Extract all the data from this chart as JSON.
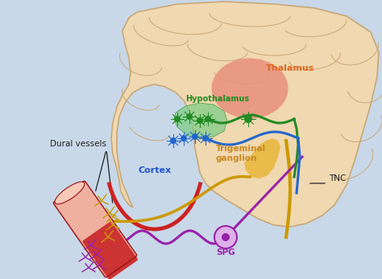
{
  "background_color": "#c8d8e8",
  "brain_color": "#f0d8b0",
  "brain_outline_color": "#c8a878",
  "thalamus_color": "#e8907a",
  "thalamus_label": "Thalamus",
  "thalamus_label_color": "#e06820",
  "hypothalamus_label": "Hypothalamus",
  "hypothalamus_label_color": "#228B22",
  "cortex_label": "Cortex",
  "cortex_label_color": "#2255cc",
  "trigeminal_label": "Trigeminal\nganglion",
  "trigeminal_label_color": "#c88820",
  "dural_label": "Dural vessels",
  "dural_label_color": "#222222",
  "tnc_label": "TNC",
  "tnc_label_color": "#222222",
  "spg_label": "SPG",
  "spg_label_color": "#9922aa",
  "cortex_arc_color": "#cc2222",
  "green_color": "#228B22",
  "blue_color": "#2266cc",
  "yellow_color": "#cc9900",
  "purple_color": "#9922aa",
  "vessel_red": "#cc3333",
  "vessel_pink": "#f0b0a0",
  "vessel_dark_red": "#991111"
}
